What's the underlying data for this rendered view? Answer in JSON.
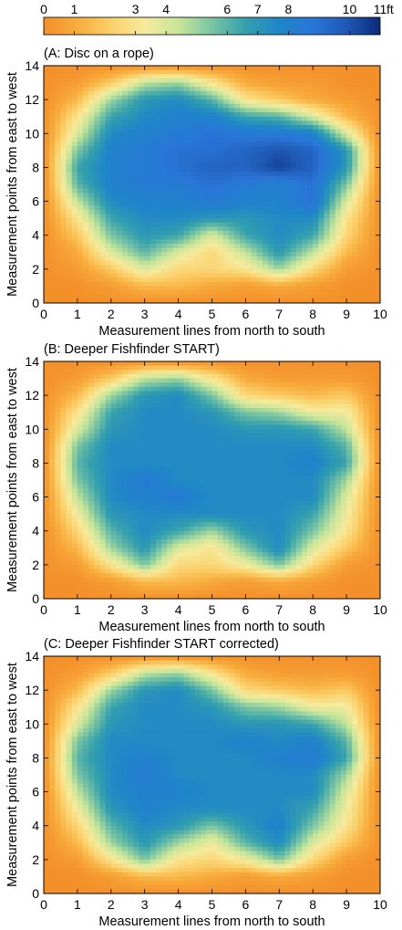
{
  "colorbar": {
    "ticks": [
      "0",
      "1",
      "3",
      "4",
      "6",
      "7",
      "8",
      "10",
      "11"
    ],
    "unit": "ft",
    "min": 0,
    "max": 11,
    "colors": [
      "#f4902a",
      "#f8ac3c",
      "#fbd06a",
      "#f6ea9c",
      "#c8e69a",
      "#79c4a3",
      "#34a0ad",
      "#1f86c8",
      "#2976d8",
      "#1f59b4",
      "#0c2a7a"
    ]
  },
  "chart_data": [
    {
      "type": "heatmap",
      "title": "(A: Disc on a rope)",
      "xlabel": "Measurement lines from north to south",
      "ylabel": "Measurement points from east to west",
      "xlim": [
        0,
        10
      ],
      "ylim": [
        0,
        14
      ],
      "x_ticks": [
        "0",
        "1",
        "2",
        "3",
        "4",
        "5",
        "6",
        "7",
        "8",
        "9",
        "10"
      ],
      "y_ticks": [
        "0",
        "2",
        "4",
        "6",
        "8",
        "10",
        "12",
        "14"
      ],
      "x": [
        0,
        1,
        2,
        3,
        4,
        5,
        6,
        7,
        8,
        9,
        10
      ],
      "y": [
        0,
        1,
        2,
        3,
        4,
        5,
        6,
        7,
        8,
        9,
        10,
        11,
        12,
        13,
        14
      ],
      "z": [
        [
          0,
          0,
          0,
          0,
          0,
          0,
          0,
          0,
          0,
          0,
          0
        ],
        [
          0,
          0,
          0.5,
          1.5,
          1.5,
          1.0,
          0.5,
          1.0,
          0.5,
          0,
          0
        ],
        [
          0,
          0.5,
          2,
          4,
          2.5,
          2.5,
          3,
          5,
          2.5,
          0.5,
          0
        ],
        [
          0,
          1,
          4,
          6,
          4,
          2.5,
          4.5,
          7,
          4.5,
          1.5,
          0
        ],
        [
          0,
          2,
          5.5,
          7,
          6.5,
          4,
          6.5,
          7.5,
          6.5,
          2.5,
          0
        ],
        [
          0,
          3,
          6.5,
          7.5,
          7.5,
          7,
          7,
          7.5,
          7.5,
          3,
          0
        ],
        [
          0,
          4.5,
          7.5,
          8,
          8,
          8.5,
          8,
          8,
          9,
          4,
          0
        ],
        [
          0,
          6,
          8,
          8.5,
          8.5,
          9,
          8.5,
          8,
          9,
          5.5,
          0
        ],
        [
          0,
          6.5,
          8,
          8.5,
          9,
          9.5,
          9.5,
          10.5,
          9.5,
          7,
          0
        ],
        [
          0,
          5.5,
          8,
          8.5,
          9,
          9,
          9.5,
          10,
          9.5,
          7,
          0
        ],
        [
          0,
          4,
          7.5,
          8,
          8.5,
          9,
          8.5,
          8.5,
          8,
          4,
          0
        ],
        [
          0,
          3,
          6.5,
          7.5,
          8,
          8,
          6.5,
          6,
          4,
          1.5,
          0
        ],
        [
          0,
          1.5,
          5,
          7,
          7.5,
          6,
          3,
          2,
          1,
          0.5,
          0
        ],
        [
          0,
          0.5,
          2,
          4.5,
          5,
          3,
          1,
          0.5,
          0.5,
          0,
          0
        ],
        [
          0,
          0,
          0,
          0,
          0,
          0,
          0,
          0,
          0,
          0,
          0
        ]
      ]
    },
    {
      "type": "heatmap",
      "title": "(B: Deeper Fishfinder START)",
      "xlabel": "Measurement lines from north to south",
      "ylabel": "Measurement points from east to west",
      "xlim": [
        0,
        10
      ],
      "ylim": [
        0,
        14
      ],
      "x_ticks": [
        "0",
        "1",
        "2",
        "3",
        "4",
        "5",
        "6",
        "7",
        "8",
        "9",
        "10"
      ],
      "y_ticks": [
        "0",
        "2",
        "4",
        "6",
        "8",
        "10",
        "12",
        "14"
      ],
      "x": [
        0,
        1,
        2,
        3,
        4,
        5,
        6,
        7,
        8,
        9,
        10
      ],
      "y": [
        0,
        1,
        2,
        3,
        4,
        5,
        6,
        7,
        8,
        9,
        10,
        11,
        12,
        13,
        14
      ],
      "z": [
        [
          0,
          0,
          0,
          0,
          0,
          0,
          0,
          0,
          0,
          0,
          0
        ],
        [
          0,
          0,
          0.5,
          1.5,
          1.5,
          1,
          0.5,
          1,
          0.5,
          0,
          0
        ],
        [
          0,
          0.5,
          3,
          5.5,
          2.5,
          2.5,
          3.5,
          5.5,
          2.5,
          0.5,
          0
        ],
        [
          0,
          1.5,
          5,
          7,
          4,
          3,
          5.5,
          7.5,
          4,
          2,
          0
        ],
        [
          0,
          2.5,
          6,
          7.5,
          6.5,
          5,
          7,
          7.5,
          5.5,
          3,
          0
        ],
        [
          0,
          3.5,
          7,
          7.5,
          7.5,
          7.5,
          7.5,
          7.5,
          6.5,
          3.5,
          0
        ],
        [
          0,
          4.5,
          7.5,
          8,
          8.5,
          7.5,
          7.5,
          7.5,
          7.5,
          4,
          0
        ],
        [
          0,
          5.5,
          7.5,
          8.5,
          7.5,
          7.5,
          7.5,
          7.5,
          7.5,
          5,
          0
        ],
        [
          0,
          6,
          7.5,
          7.5,
          7.5,
          7.5,
          7.5,
          7.5,
          8,
          6.5,
          0
        ],
        [
          0,
          5.5,
          7.5,
          7.5,
          7.5,
          7.5,
          7.5,
          7.5,
          7.5,
          6,
          0
        ],
        [
          0,
          4,
          7,
          7.5,
          7.5,
          7.5,
          7,
          7,
          6.5,
          4.5,
          0
        ],
        [
          0,
          3,
          6.5,
          7.5,
          7.5,
          7,
          5.5,
          5,
          3.5,
          3.5,
          0
        ],
        [
          0,
          1.5,
          5,
          7,
          7.5,
          5.5,
          2.5,
          2,
          1.5,
          2,
          0
        ],
        [
          0,
          0.5,
          2,
          4.5,
          5,
          3,
          1,
          0.5,
          0.5,
          0.5,
          0
        ],
        [
          0,
          0,
          0,
          0,
          0,
          0,
          0,
          0,
          0,
          0,
          0
        ]
      ]
    },
    {
      "type": "heatmap",
      "title": "(C: Deeper Fishfinder START corrected)",
      "xlabel": "Measurement lines from north to south",
      "ylabel": "Measurement points from east to west",
      "xlim": [
        0,
        10
      ],
      "ylim": [
        0,
        14
      ],
      "x_ticks": [
        "0",
        "1",
        "2",
        "3",
        "4",
        "5",
        "6",
        "7",
        "8",
        "9",
        "10"
      ],
      "y_ticks": [
        "0",
        "2",
        "4",
        "6",
        "8",
        "10",
        "12",
        "14"
      ],
      "x": [
        0,
        1,
        2,
        3,
        4,
        5,
        6,
        7,
        8,
        9,
        10
      ],
      "y": [
        0,
        1,
        2,
        3,
        4,
        5,
        6,
        7,
        8,
        9,
        10,
        11,
        12,
        13,
        14
      ],
      "z": [
        [
          0,
          0,
          0,
          0,
          0,
          0,
          0,
          0,
          0,
          0,
          0
        ],
        [
          0,
          0,
          0.5,
          1.5,
          1.5,
          1,
          0.5,
          1,
          0.5,
          0,
          0
        ],
        [
          0,
          0.5,
          3,
          5.5,
          3,
          2.5,
          3.5,
          5.5,
          2.5,
          0.5,
          0
        ],
        [
          0,
          1.5,
          5,
          7,
          5,
          3.5,
          6,
          7.5,
          4,
          2,
          0
        ],
        [
          0,
          2.5,
          6,
          7.5,
          7,
          5.5,
          7,
          8,
          5.5,
          3,
          0
        ],
        [
          0,
          3.5,
          7,
          8,
          7.5,
          7.5,
          7.5,
          7.5,
          6.5,
          3.5,
          0
        ],
        [
          0,
          4.5,
          7.5,
          8,
          8,
          7.5,
          7.5,
          7.5,
          7.5,
          4,
          0
        ],
        [
          0,
          5.5,
          7.5,
          8.5,
          7.5,
          7.5,
          7.5,
          7.5,
          7.5,
          5,
          0
        ],
        [
          0,
          6,
          7.5,
          8,
          7.5,
          7.5,
          7.5,
          8,
          8.5,
          6.5,
          0
        ],
        [
          0,
          5.5,
          7.5,
          7.5,
          7.5,
          7.5,
          8,
          7.5,
          8,
          6,
          0
        ],
        [
          0,
          4,
          7,
          7.5,
          7.5,
          7.5,
          7,
          7,
          6.5,
          4.5,
          0
        ],
        [
          0,
          3,
          6.5,
          7.5,
          7.5,
          7,
          5.5,
          5,
          3.5,
          3.5,
          0
        ],
        [
          0,
          1.5,
          5,
          7,
          7.5,
          5.5,
          2.5,
          2,
          1.5,
          2,
          0
        ],
        [
          0,
          0.5,
          2,
          4.5,
          5,
          3,
          1,
          0.5,
          0.5,
          0.5,
          0
        ],
        [
          0,
          0,
          0,
          0,
          0,
          0,
          0,
          0,
          0,
          0,
          0
        ]
      ]
    }
  ]
}
